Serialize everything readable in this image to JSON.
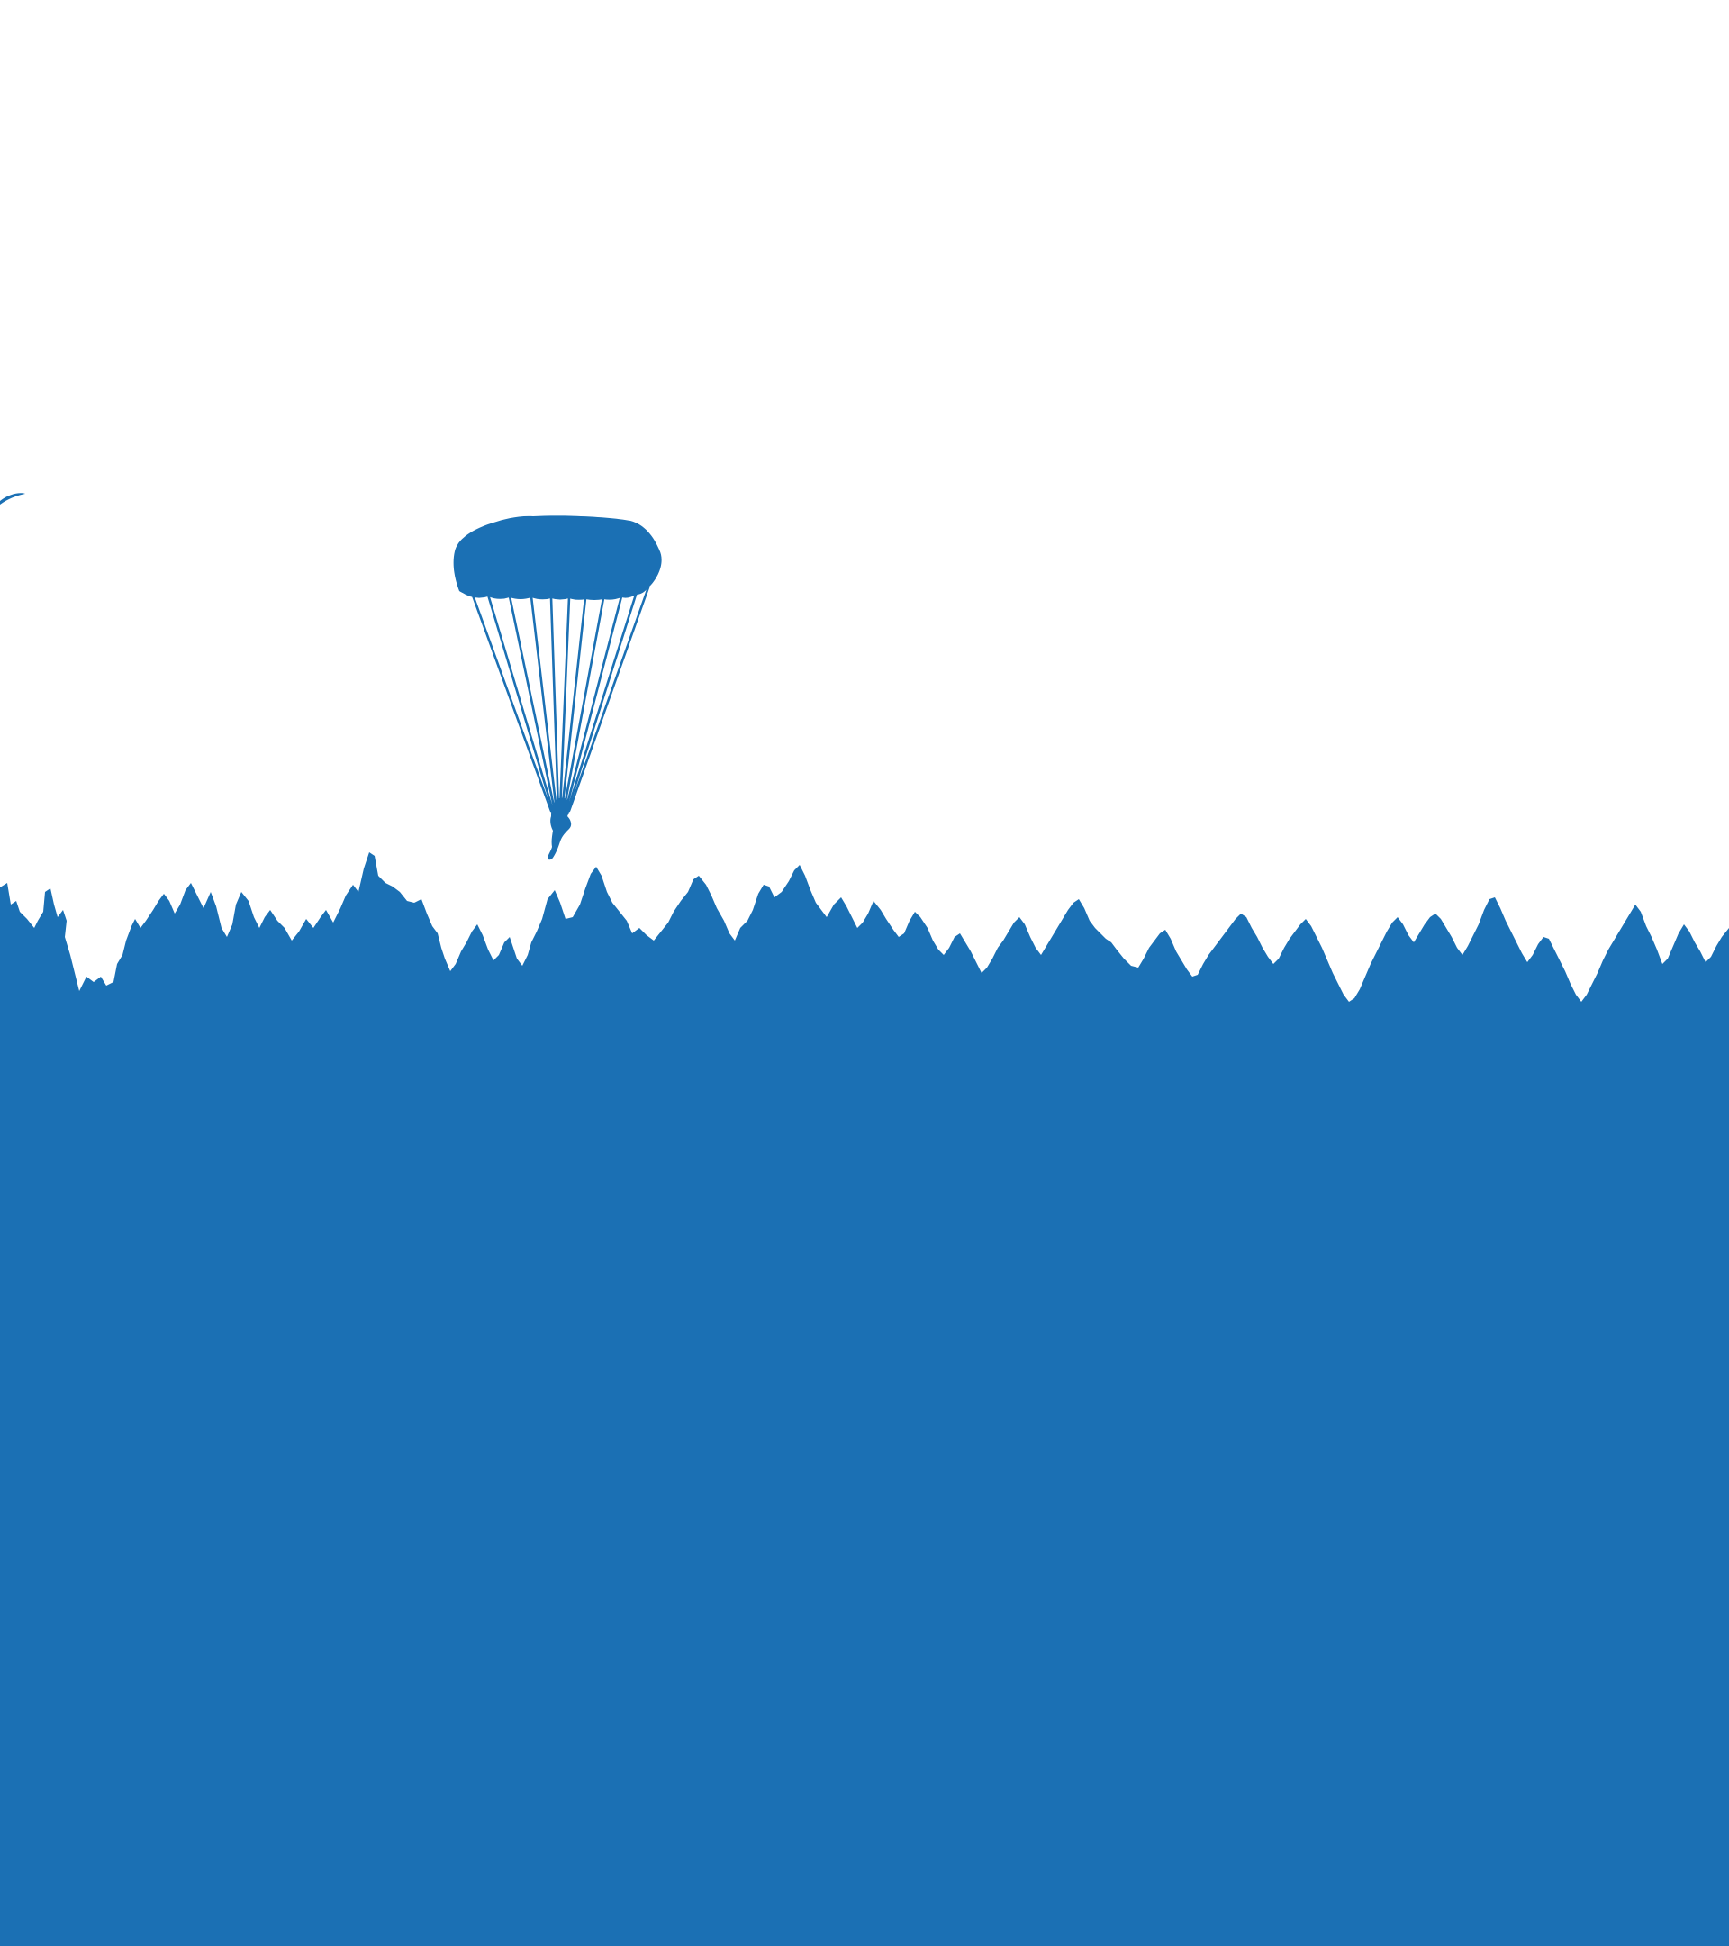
{
  "scene": {
    "type": "vector-illustration",
    "colors": {
      "sky": "#ffffff",
      "ink": "#1b70b4"
    },
    "elements": [
      {
        "name": "parachute-canopy",
        "shape": "rounded-dome"
      },
      {
        "name": "suspension-lines",
        "count": 11
      },
      {
        "name": "parachutist-figure"
      },
      {
        "name": "partial-canopy-edge",
        "cropped": true
      },
      {
        "name": "treeline-silhouette",
        "style": "conifer-forest"
      }
    ],
    "text": []
  }
}
